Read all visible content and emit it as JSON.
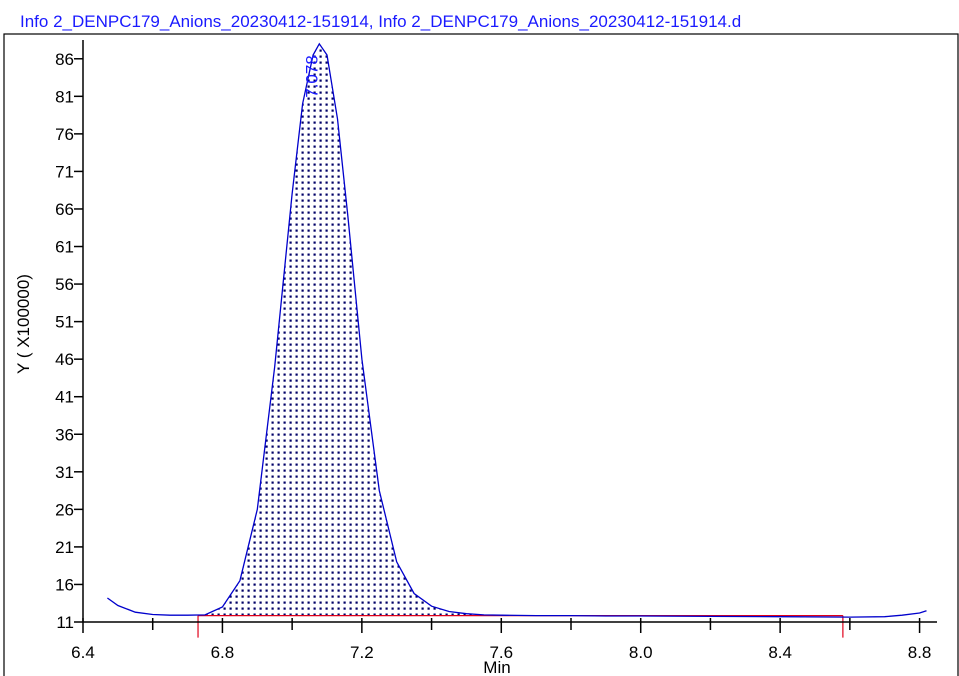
{
  "window": {
    "header_fragment": ""
  },
  "chart_data": {
    "type": "line",
    "title": "Info 2_DENPC179_Anions_20230412-151914, Info 2_DENPC179_Anions_20230412-151914.d",
    "xlabel": "Min",
    "ylabel": "Y ( X100000)",
    "xlim": [
      6.4,
      8.85
    ],
    "ylim": [
      11,
      88.5
    ],
    "x_tick_labels": [
      "6.4",
      "6.8",
      "7.2",
      "7.6",
      "8.0",
      "8.4",
      "8.8"
    ],
    "y_tick_labels": [
      "11",
      "16",
      "21",
      "26",
      "31",
      "36",
      "41",
      "46",
      "51",
      "56",
      "61",
      "66",
      "71",
      "76",
      "81",
      "86"
    ],
    "series": [
      {
        "x": [
          6.47,
          6.5,
          6.55,
          6.6,
          6.65,
          6.7,
          6.75,
          6.8,
          6.85,
          6.9,
          6.95,
          7.0,
          7.03,
          7.06,
          7.078,
          7.1,
          7.13,
          7.16,
          7.2,
          7.25,
          7.3,
          7.35,
          7.4,
          7.45,
          7.5,
          7.55,
          7.6,
          7.7,
          7.8,
          7.9,
          8.0,
          8.2,
          8.4,
          8.6,
          8.7,
          8.75,
          8.8,
          8.82
        ],
        "y": [
          14.2,
          13.2,
          12.3,
          12.0,
          11.9,
          11.9,
          11.95,
          13.0,
          16.5,
          26.0,
          45.0,
          68.0,
          80.0,
          86.5,
          88.0,
          86.5,
          78.0,
          65.0,
          46.0,
          28.5,
          19.0,
          14.8,
          13.1,
          12.4,
          12.1,
          11.95,
          11.9,
          11.85,
          11.85,
          11.8,
          11.8,
          11.75,
          11.7,
          11.65,
          11.7,
          11.9,
          12.2,
          12.5
        ]
      }
    ],
    "peak": {
      "label": "7.078",
      "x": 7.078,
      "y": 88.0,
      "integration_start": 6.73,
      "integration_end": 8.58
    },
    "colors": {
      "trace": "#0000cc",
      "baseline": "#e0001a",
      "fill_dots": "#000066",
      "title": "#1a1aff"
    },
    "grid": false
  }
}
